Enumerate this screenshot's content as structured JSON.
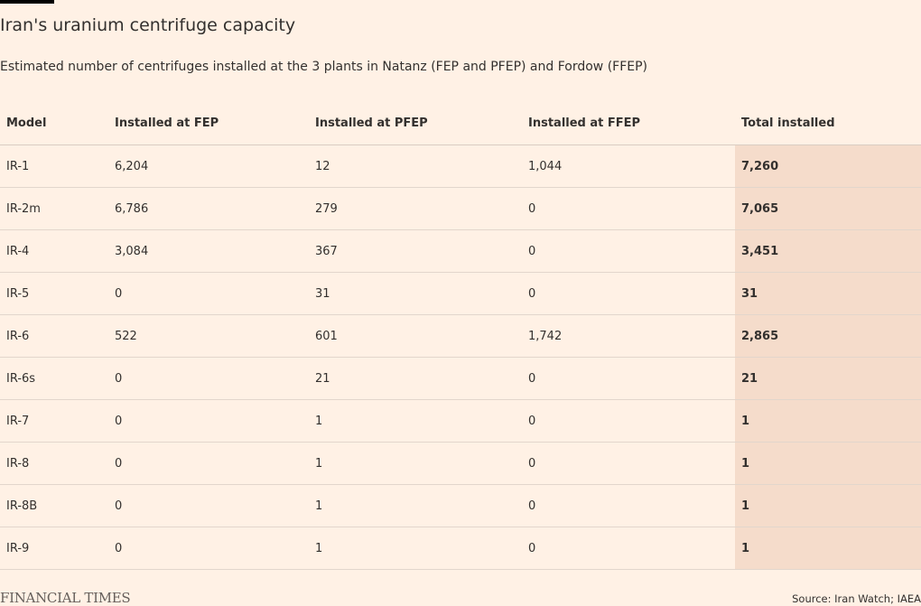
{
  "title": "Iran's uranium centrifuge capacity",
  "subtitle": "Estimated number of centrifuges installed at the 3 plants in Natanz (FEP and PFEP) and Fordow (FFEP)",
  "brand": "FINANCIAL TIMES",
  "source": "Source: Iran Watch; IAEA",
  "colors": {
    "background": "#fff1e5",
    "total_column": "#f5dccb",
    "text": "#33302e"
  },
  "chart_data": {
    "type": "table",
    "title": "Iran's uranium centrifuge capacity",
    "subtitle": "Estimated number of centrifuges installed at the 3 plants in Natanz (FEP and PFEP) and Fordow (FFEP)",
    "columns": [
      "Model",
      "Installed at FEP",
      "Installed at PFEP",
      "Installed at FFEP",
      "Total installed"
    ],
    "rows": [
      [
        "IR-1",
        "6,204",
        "12",
        "1,044",
        "7,260"
      ],
      [
        "IR-2m",
        "6,786",
        "279",
        "0",
        "7,065"
      ],
      [
        "IR-4",
        "3,084",
        "367",
        "0",
        "3,451"
      ],
      [
        "IR-5",
        "0",
        "31",
        "0",
        "31"
      ],
      [
        "IR-6",
        "522",
        "601",
        "1,742",
        "2,865"
      ],
      [
        "IR-6s",
        "0",
        "21",
        "0",
        "21"
      ],
      [
        "IR-7",
        "0",
        "1",
        "0",
        "1"
      ],
      [
        "IR-8",
        "0",
        "1",
        "0",
        "1"
      ],
      [
        "IR-8B",
        "0",
        "1",
        "0",
        "1"
      ],
      [
        "IR-9",
        "0",
        "1",
        "0",
        "1"
      ]
    ]
  }
}
